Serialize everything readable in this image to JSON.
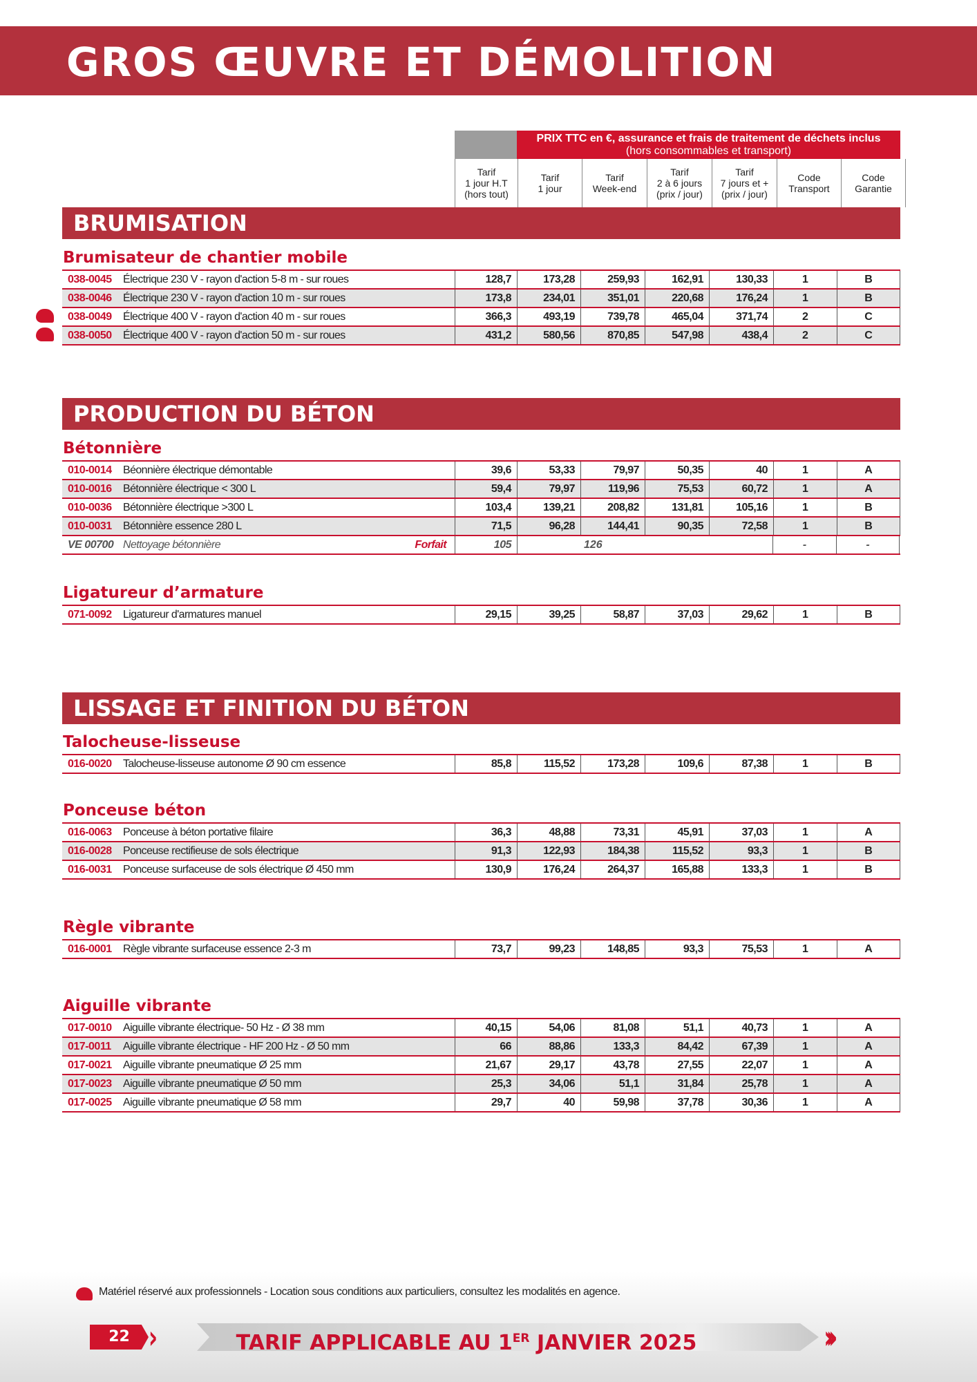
{
  "title": "GROS ŒUVRE ET DÉMOLITION",
  "header": {
    "price_note": "PRIX TTC en €, assurance et frais de traitement de déchets inclus",
    "price_subnote": "(hors consommables et transport)",
    "columns": [
      "Tarif\n1 jour H.T\n(hors tout)",
      "Tarif\n1 jour",
      "Tarif\nWeek-end",
      "Tarif\n2 à 6 jours\n(prix / jour)",
      "Tarif\n7 jours et +\n(prix / jour)",
      "Code\nTransport",
      "Code\nGarantie"
    ]
  },
  "sections": [
    {
      "title": "BRUMISATION",
      "groups": [
        {
          "title": "Brumisateur de chantier mobile",
          "rows": [
            {
              "code": "038-0045",
              "desc": "Électrique 230 V - rayon d'action 5-8 m - sur roues",
              "v": [
                "128,7",
                "173,28",
                "259,93",
                "162,91",
                "130,33",
                "1",
                "B"
              ]
            },
            {
              "code": "038-0046",
              "desc": "Électrique 230 V - rayon d'action 10 m - sur roues",
              "v": [
                "173,8",
                "234,01",
                "351,01",
                "220,68",
                "176,24",
                "1",
                "B"
              ]
            },
            {
              "code": "038-0049",
              "desc": "Électrique 400 V - rayon d'action 40 m - sur roues",
              "v": [
                "366,3",
                "493,19",
                "739,78",
                "465,04",
                "371,74",
                "2",
                "C"
              ],
              "pro": true
            },
            {
              "code": "038-0050",
              "desc": "Électrique 400 V - rayon d'action 50 m - sur roues",
              "v": [
                "431,2",
                "580,56",
                "870,85",
                "547,98",
                "438,4",
                "2",
                "C"
              ],
              "pro": true
            }
          ]
        }
      ]
    },
    {
      "title": "PRODUCTION DU BÉTON",
      "groups": [
        {
          "title": "Bétonnière",
          "rows": [
            {
              "code": "010-0014",
              "desc": "Béonnière électrique démontable",
              "v": [
                "39,6",
                "53,33",
                "79,97",
                "50,35",
                "40",
                "1",
                "A"
              ]
            },
            {
              "code": "010-0016",
              "desc": "Bétonnière électrique < 300 L",
              "v": [
                "59,4",
                "79,97",
                "119,96",
                "75,53",
                "60,72",
                "1",
                "A"
              ]
            },
            {
              "code": "010-0036",
              "desc": "Bétonnière électrique >300 L",
              "v": [
                "103,4",
                "139,21",
                "208,82",
                "131,81",
                "105,16",
                "1",
                "B"
              ]
            },
            {
              "code": "010-0031",
              "desc": "Bétonnière essence  280 L",
              "v": [
                "71,5",
                "96,28",
                "144,41",
                "90,35",
                "72,58",
                "1",
                "B"
              ]
            },
            {
              "code": "VE 00700",
              "desc": "Nettoyage bétonnière",
              "tag": "Forfait",
              "forfait": true,
              "v": [
                "105",
                "126",
                "-",
                "-"
              ]
            }
          ]
        },
        {
          "title": "Ligatureur d’armature",
          "rows": [
            {
              "code": "071-0092",
              "desc": "Ligatureur d'armatures manuel",
              "v": [
                "29,15",
                "39,25",
                "58,87",
                "37,03",
                "29,62",
                "1",
                "B"
              ]
            }
          ]
        }
      ]
    },
    {
      "title": "LISSAGE ET FINITION DU BÉTON",
      "groups": [
        {
          "title": "Talocheuse-lisseuse",
          "rows": [
            {
              "code": "016-0020",
              "desc": "Talocheuse-lisseuse autonome Ø 90 cm essence",
              "v": [
                "85,8",
                "115,52",
                "173,28",
                "109,6",
                "87,38",
                "1",
                "B"
              ]
            }
          ]
        },
        {
          "title": "Ponceuse béton",
          "rows": [
            {
              "code": "016-0063",
              "desc": "Ponceuse à béton portative filaire",
              "v": [
                "36,3",
                "48,88",
                "73,31",
                "45,91",
                "37,03",
                "1",
                "A"
              ]
            },
            {
              "code": "016-0028",
              "desc": "Ponceuse rectifieuse de sols électrique",
              "v": [
                "91,3",
                "122,93",
                "184,38",
                "115,52",
                "93,3",
                "1",
                "B"
              ]
            },
            {
              "code": "016-0031",
              "desc": "Ponceuse surfaceuse de sols électrique Ø  450 mm",
              "v": [
                "130,9",
                "176,24",
                "264,37",
                "165,88",
                "133,3",
                "1",
                "B"
              ]
            }
          ]
        },
        {
          "title": "Règle vibrante",
          "rows": [
            {
              "code": "016-0001",
              "desc": "Règle vibrante surfaceuse essence 2-3 m",
              "v": [
                "73,7",
                "99,23",
                "148,85",
                "93,3",
                "75,53",
                "1",
                "A"
              ]
            }
          ]
        },
        {
          "title": "Aiguille vibrante",
          "rows": [
            {
              "code": "017-0010",
              "desc": "Aiguille vibrante électrique- 50 Hz - Ø 38 mm",
              "v": [
                "40,15",
                "54,06",
                "81,08",
                "51,1",
                "40,73",
                "1",
                "A"
              ]
            },
            {
              "code": "017-0011",
              "desc": "Aiguille vibrante électrique - HF 200 Hz - Ø 50 mm",
              "v": [
                "66",
                "88,86",
                "133,3",
                "84,42",
                "67,39",
                "1",
                "A"
              ]
            },
            {
              "code": "017-0021",
              "desc": "Aiguille vibrante pneumatique Ø 25 mm",
              "v": [
                "21,67",
                "29,17",
                "43,78",
                "27,55",
                "22,07",
                "1",
                "A"
              ]
            },
            {
              "code": "017-0023",
              "desc": "Aiguille vibrante pneumatique Ø 50 mm",
              "v": [
                "25,3",
                "34,06",
                "51,1",
                "31,84",
                "25,78",
                "1",
                "A"
              ]
            },
            {
              "code": "017-0025",
              "desc": "Aiguille vibrante pneumatique Ø 58 mm",
              "v": [
                "29,7",
                "40",
                "59,98",
                "37,78",
                "30,36",
                "1",
                "A"
              ]
            }
          ]
        }
      ]
    }
  ],
  "footnote": "Matériel réservé aux professionnels - Location sous conditions aux particuliers, consultez les modalités en agence.",
  "footer": {
    "page": "22",
    "tarif_pre": "TARIF APPLICABLE AU 1",
    "tarif_sup": "ER",
    "tarif_post": " JANVIER 2025"
  },
  "colors": {
    "brand_red": "#b3313d",
    "accent_red": "#d0142c",
    "gray": "#9d9d9d"
  }
}
